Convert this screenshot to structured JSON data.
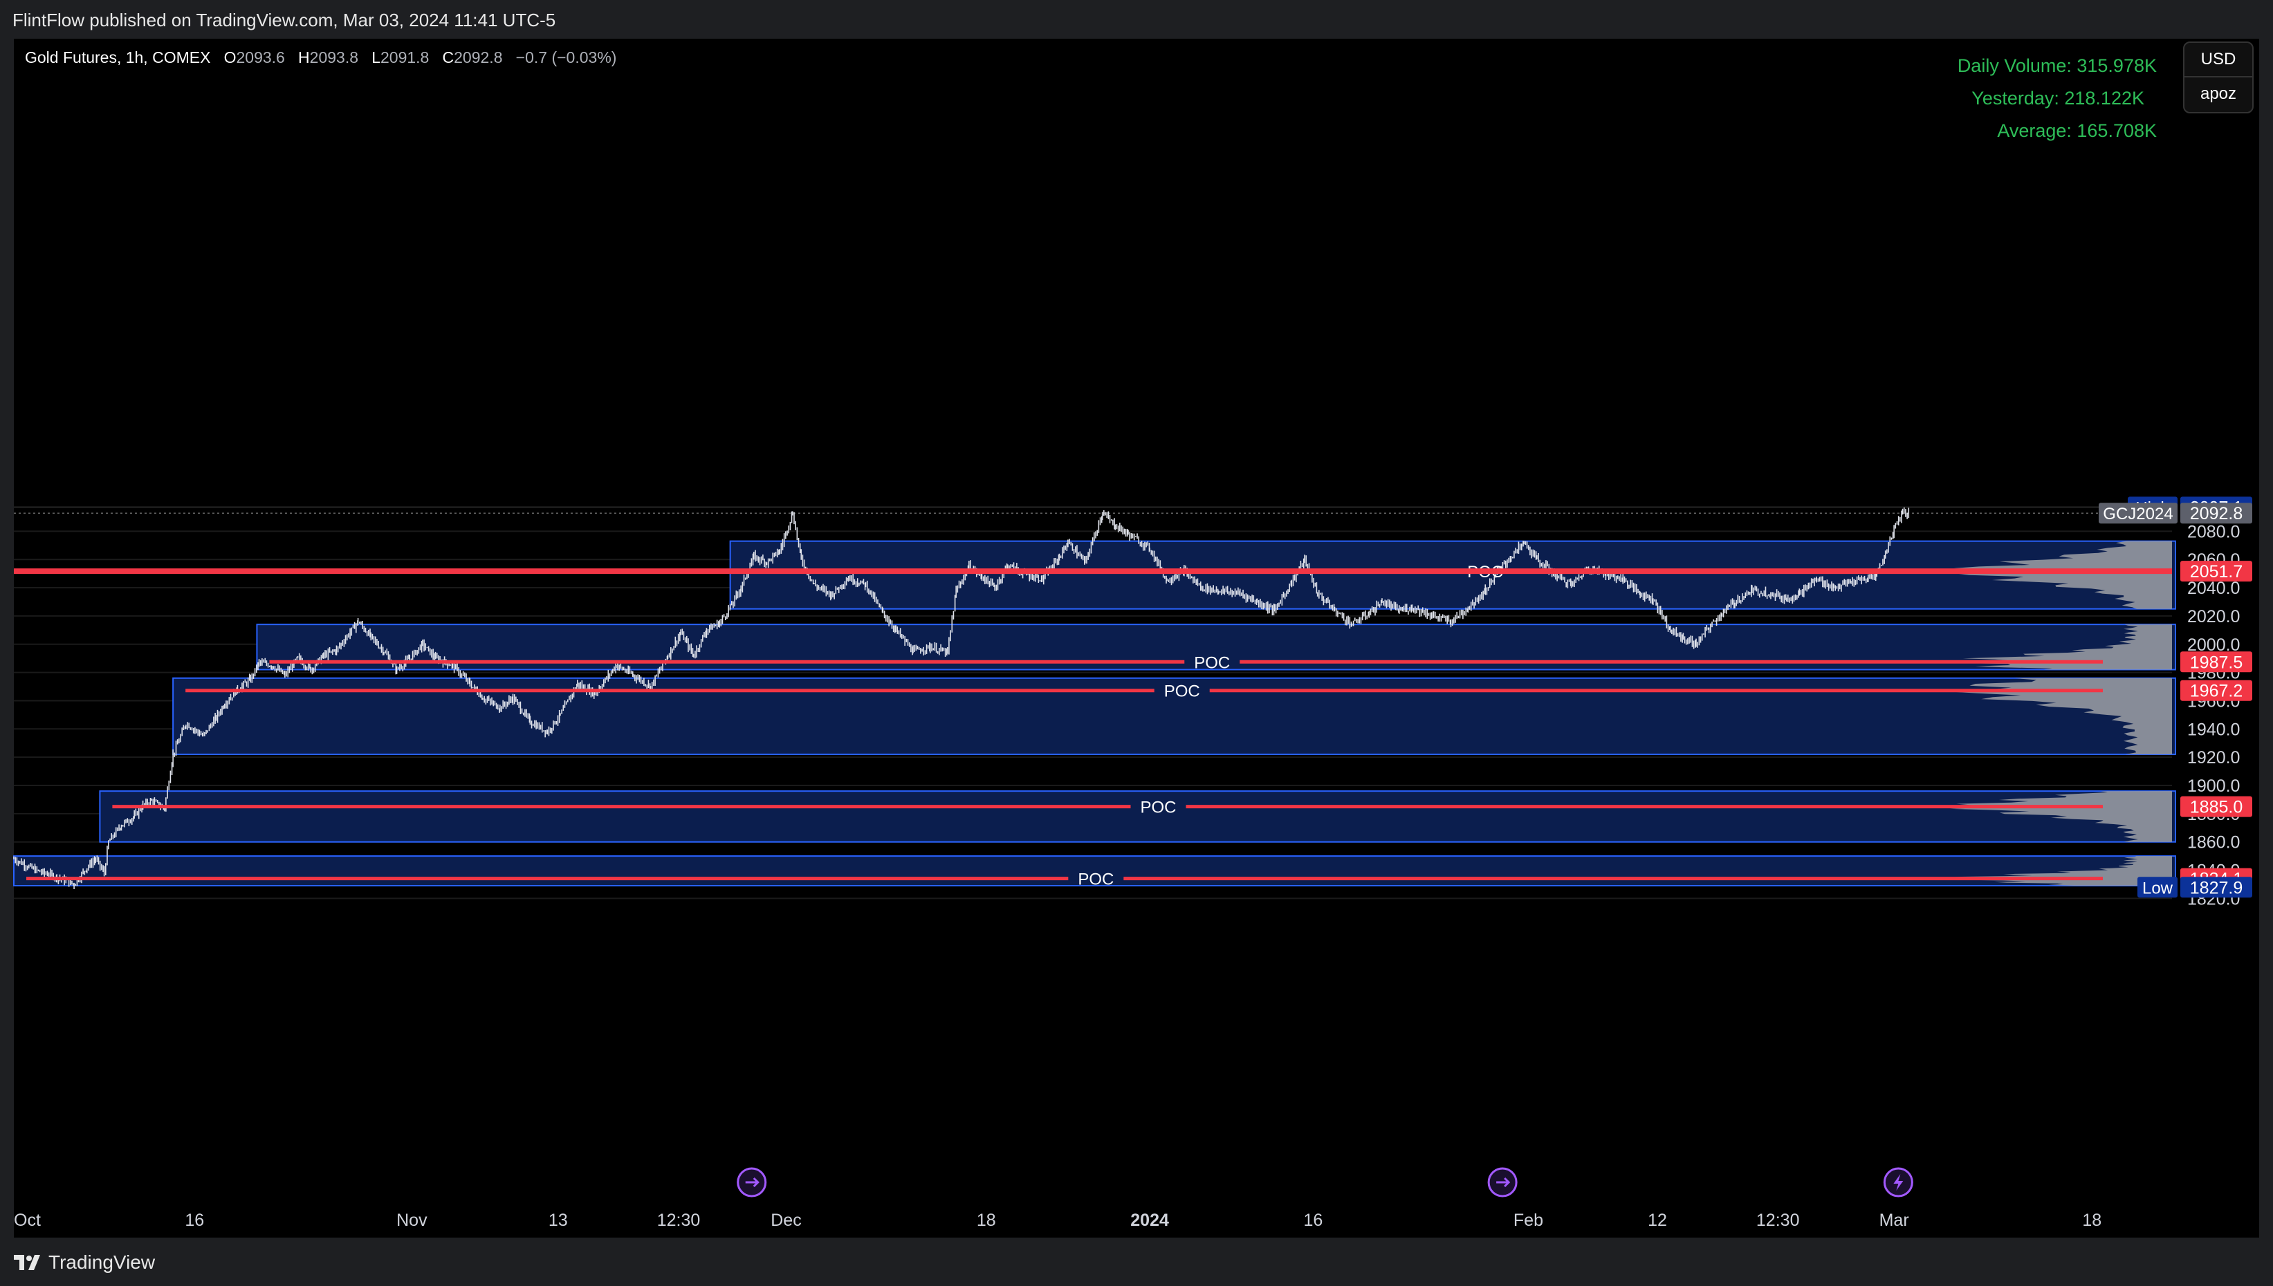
{
  "header": {
    "publish_line": "FlintFlow published on TradingView.com, Mar 03, 2024 11:41 UTC-5"
  },
  "legend": {
    "symbol": "Gold Futures, 1h, COMEX",
    "o_label": "O",
    "o": "2093.6",
    "h_label": "H",
    "h": "2093.8",
    "l_label": "L",
    "l": "2091.8",
    "c_label": "C",
    "c": "2092.8",
    "change": "−0.7 (−0.03%)"
  },
  "volume_info": {
    "daily": "Daily Volume: 315.978K",
    "yesterday": "Yesterday: 218.122K",
    "average": "Average: 165.708K"
  },
  "currency_menu": {
    "currency": "USD",
    "user": "apoz"
  },
  "footer": {
    "brand": "TradingView"
  },
  "colors": {
    "background": "#000000",
    "box_fill": "#0b1e4e",
    "box_border": "#2962ff",
    "poc_line": "#f23645",
    "candle": "#e0e3eb",
    "profile": "#9598a1",
    "volume_text": "#2ebd58",
    "tag_red": "#f23645",
    "tag_blue": "#0c3299",
    "tag_gray": "#5d606b"
  },
  "chart_data": {
    "type": "candlestick",
    "symbol": "GCJ2024",
    "interval": "1h",
    "ylim": [
      1815,
      2110
    ],
    "y_ticks": [
      1820,
      1840,
      1860,
      1880,
      1900,
      1920,
      1940,
      1960,
      1980,
      2000,
      2020,
      2040,
      2060,
      2080
    ],
    "y_tick_labels": [
      "1820.0",
      "1840.0",
      "1860.0",
      "1880.0",
      "1900.0",
      "1920.0",
      "1940.0",
      "1960.0",
      "1980.0",
      "2000.0",
      "2020.0",
      "2040.0",
      "2060.0",
      "2080.0"
    ],
    "x_range": [
      0,
      1000
    ],
    "x_ticks": [
      {
        "pos": 0,
        "label": "Oct"
      },
      {
        "pos": 84,
        "label": "16"
      },
      {
        "pos": 185,
        "label": "Nov"
      },
      {
        "pos": 253,
        "label": "13"
      },
      {
        "pos": 309,
        "label": "12:30"
      },
      {
        "pos": 359,
        "label": "Dec"
      },
      {
        "pos": 452,
        "label": "18"
      },
      {
        "pos": 528,
        "label": "2024"
      },
      {
        "pos": 604,
        "label": "16"
      },
      {
        "pos": 704,
        "label": "Feb"
      },
      {
        "pos": 764,
        "label": "12"
      },
      {
        "pos": 820,
        "label": "12:30"
      },
      {
        "pos": 874,
        "label": "Mar"
      },
      {
        "pos": 966,
        "label": "18"
      }
    ],
    "price_tags": [
      {
        "label": "High",
        "value": "2097.1",
        "price": 2097.1,
        "kind": "blue"
      },
      {
        "label": "GCJ2024",
        "value": "2092.8",
        "price": 2092.8,
        "kind": "gray"
      },
      {
        "label": "",
        "value": "2051.7",
        "price": 2051.7,
        "kind": "red"
      },
      {
        "label": "",
        "value": "1987.5",
        "price": 1987.5,
        "kind": "red"
      },
      {
        "label": "",
        "value": "1967.2",
        "price": 1967.2,
        "kind": "red"
      },
      {
        "label": "",
        "value": "1885.0",
        "price": 1885.0,
        "kind": "red"
      },
      {
        "label": "",
        "value": "1834.1",
        "price": 1834.1,
        "kind": "red"
      },
      {
        "label": "Low",
        "value": "1827.9",
        "price": 1827.9,
        "kind": "blue"
      }
    ],
    "volume_profiles": [
      {
        "x_start": 333,
        "y_low": 2025,
        "y_high": 2073,
        "poc": 2051.7,
        "poc_label": "POC",
        "poc_label_x": 684
      },
      {
        "x_start": 113,
        "y_low": 1982,
        "y_high": 2014,
        "poc": 1987.5,
        "poc_label": "POC",
        "poc_label_x": 557
      },
      {
        "x_start": 74,
        "y_low": 1922,
        "y_high": 1976,
        "poc": 1967.2,
        "poc_label": "POC",
        "poc_label_x": 543
      },
      {
        "x_start": 40,
        "y_low": 1860,
        "y_high": 1896,
        "poc": 1885.0,
        "poc_label": "POC",
        "poc_label_x": 532
      },
      {
        "x_start": 0,
        "y_low": 1829,
        "y_high": 1850,
        "poc": 1834.1,
        "poc_label": "POC",
        "poc_label_x": 503
      }
    ],
    "price_path": [
      [
        0,
        1848
      ],
      [
        10,
        1840
      ],
      [
        20,
        1835
      ],
      [
        28,
        1830
      ],
      [
        34,
        1842
      ],
      [
        38,
        1848
      ],
      [
        42,
        1838
      ],
      [
        44,
        1860
      ],
      [
        50,
        1872
      ],
      [
        56,
        1878
      ],
      [
        60,
        1886
      ],
      [
        64,
        1889
      ],
      [
        70,
        1884
      ],
      [
        74,
        1922
      ],
      [
        80,
        1944
      ],
      [
        88,
        1935
      ],
      [
        94,
        1948
      ],
      [
        98,
        1958
      ],
      [
        104,
        1968
      ],
      [
        110,
        1975
      ],
      [
        114,
        1987
      ],
      [
        120,
        1985
      ],
      [
        126,
        1978
      ],
      [
        132,
        1990
      ],
      [
        138,
        1982
      ],
      [
        144,
        1992
      ],
      [
        150,
        1996
      ],
      [
        160,
        2016
      ],
      [
        166,
        2005
      ],
      [
        172,
        1995
      ],
      [
        178,
        1982
      ],
      [
        184,
        1990
      ],
      [
        190,
        2000
      ],
      [
        196,
        1990
      ],
      [
        204,
        1985
      ],
      [
        212,
        1972
      ],
      [
        218,
        1962
      ],
      [
        226,
        1955
      ],
      [
        232,
        1962
      ],
      [
        240,
        1945
      ],
      [
        248,
        1938
      ],
      [
        254,
        1950
      ],
      [
        262,
        1972
      ],
      [
        270,
        1965
      ],
      [
        280,
        1985
      ],
      [
        288,
        1978
      ],
      [
        296,
        1970
      ],
      [
        304,
        1992
      ],
      [
        310,
        2008
      ],
      [
        316,
        1992
      ],
      [
        322,
        2010
      ],
      [
        328,
        2015
      ],
      [
        333,
        2026
      ],
      [
        338,
        2040
      ],
      [
        344,
        2062
      ],
      [
        350,
        2058
      ],
      [
        356,
        2066
      ],
      [
        362,
        2093
      ],
      [
        366,
        2060
      ],
      [
        372,
        2042
      ],
      [
        380,
        2035
      ],
      [
        388,
        2047
      ],
      [
        396,
        2042
      ],
      [
        404,
        2022
      ],
      [
        410,
        2010
      ],
      [
        418,
        1995
      ],
      [
        426,
        1998
      ],
      [
        434,
        1994
      ],
      [
        438,
        2038
      ],
      [
        444,
        2055
      ],
      [
        450,
        2048
      ],
      [
        456,
        2040
      ],
      [
        462,
        2056
      ],
      [
        470,
        2050
      ],
      [
        478,
        2046
      ],
      [
        486,
        2062
      ],
      [
        490,
        2072
      ],
      [
        498,
        2058
      ],
      [
        506,
        2093
      ],
      [
        512,
        2084
      ],
      [
        518,
        2078
      ],
      [
        528,
        2068
      ],
      [
        536,
        2045
      ],
      [
        544,
        2052
      ],
      [
        552,
        2040
      ],
      [
        560,
        2038
      ],
      [
        570,
        2036
      ],
      [
        578,
        2030
      ],
      [
        586,
        2024
      ],
      [
        594,
        2044
      ],
      [
        600,
        2060
      ],
      [
        606,
        2036
      ],
      [
        614,
        2024
      ],
      [
        622,
        2014
      ],
      [
        630,
        2022
      ],
      [
        636,
        2030
      ],
      [
        644,
        2024
      ],
      [
        650,
        2026
      ],
      [
        660,
        2020
      ],
      [
        668,
        2016
      ],
      [
        676,
        2026
      ],
      [
        684,
        2038
      ],
      [
        690,
        2052
      ],
      [
        696,
        2062
      ],
      [
        702,
        2072
      ],
      [
        708,
        2060
      ],
      [
        716,
        2050
      ],
      [
        724,
        2042
      ],
      [
        732,
        2054
      ],
      [
        740,
        2050
      ],
      [
        748,
        2046
      ],
      [
        756,
        2036
      ],
      [
        762,
        2032
      ],
      [
        770,
        2010
      ],
      [
        776,
        2004
      ],
      [
        782,
        2000
      ],
      [
        788,
        2012
      ],
      [
        794,
        2022
      ],
      [
        800,
        2030
      ],
      [
        808,
        2038
      ],
      [
        816,
        2036
      ],
      [
        824,
        2032
      ],
      [
        830,
        2036
      ],
      [
        838,
        2046
      ],
      [
        846,
        2040
      ],
      [
        854,
        2044
      ],
      [
        862,
        2046
      ],
      [
        866,
        2050
      ],
      [
        870,
        2064
      ],
      [
        874,
        2082
      ],
      [
        878,
        2094
      ],
      [
        881,
        2092.8
      ]
    ],
    "markers": [
      {
        "x": 343,
        "kind": "events-icon"
      },
      {
        "x": 692,
        "kind": "events-icon"
      },
      {
        "x": 876,
        "kind": "bolt-icon"
      }
    ]
  }
}
